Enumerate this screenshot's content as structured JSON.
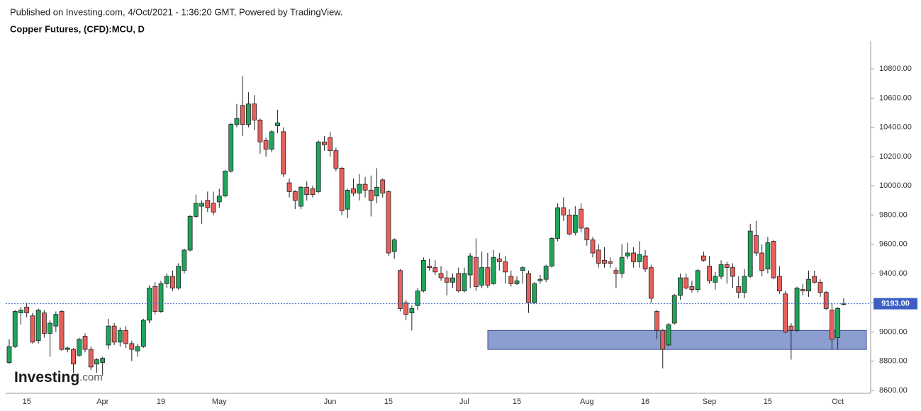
{
  "header": "Published on Investing.com, 4/Oct/2021 - 1:36:20 GMT, Powered by TradingView.",
  "logo": {
    "name": "Investing",
    "suffix": ".com"
  },
  "chart_data": {
    "type": "candlestick",
    "title": "Copper Futures, (CFD):MCU, D",
    "up_color": "#1fa55b",
    "down_color": "#e8605a",
    "outline_color": "#222222",
    "categories": [
      null,
      null,
      null,
      "15",
      null,
      null,
      null,
      null,
      null,
      null,
      null,
      null,
      null,
      null,
      null,
      null,
      "Apr",
      null,
      null,
      null,
      null,
      null,
      null,
      null,
      null,
      null,
      "19",
      null,
      null,
      null,
      null,
      null,
      null,
      null,
      null,
      null,
      "May",
      null,
      null,
      null,
      null,
      null,
      null,
      null,
      null,
      null,
      null,
      null,
      null,
      null,
      null,
      null,
      null,
      null,
      null,
      "Jun",
      null,
      null,
      null,
      null,
      null,
      null,
      null,
      null,
      null,
      "15",
      null,
      null,
      null,
      null,
      null,
      null,
      null,
      null,
      null,
      null,
      null,
      null,
      "Jul",
      null,
      null,
      null,
      null,
      null,
      null,
      null,
      null,
      "15",
      null,
      null,
      null,
      null,
      null,
      null,
      null,
      null,
      null,
      null,
      null,
      "Aug",
      null,
      null,
      null,
      null,
      null,
      null,
      null,
      null,
      null,
      "16",
      null,
      null,
      null,
      null,
      null,
      null,
      null,
      null,
      null,
      null,
      "Sep",
      null,
      null,
      null,
      null,
      null,
      null,
      null,
      null,
      null,
      "15",
      null,
      null,
      null,
      null,
      null,
      null,
      null,
      null,
      null,
      null,
      null,
      "Oct",
      null
    ],
    "open": [
      8790,
      8900,
      9130,
      9170,
      9110,
      8940,
      9130,
      8990,
      9040,
      9140,
      8880,
      8880,
      8840,
      8970,
      8880,
      8780,
      8790,
      8910,
      9040,
      8930,
      9010,
      8920,
      8870,
      8900,
      9080,
      9310,
      9140,
      9330,
      9380,
      9300,
      9420,
      9560,
      9790,
      9860,
      9900,
      9880,
      9890,
      9930,
      10100,
      10420,
      10550,
      10420,
      10560,
      10450,
      10310,
      10250,
      10410,
      10370,
      10020,
      9960,
      9860,
      9990,
      9980,
      9960,
      10300,
      10330,
      10240,
      10120,
      9840,
      9980,
      9950,
      10010,
      9970,
      9930,
      10040,
      9960,
      9550,
      9420,
      9200,
      9130,
      9180,
      9280,
      9450,
      9440,
      9400,
      9370,
      9340,
      9400,
      9280,
      9390,
      9510,
      9320,
      9440,
      9330,
      9500,
      9480,
      9380,
      9330,
      9420,
      9400,
      9200,
      9350,
      9360,
      9450,
      9640,
      9850,
      9800,
      9680,
      9840,
      9710,
      9630,
      9560,
      9490,
      9480,
      9420,
      9400,
      9520,
      9540,
      9480,
      9520,
      9440,
      9140,
      9010,
      8910,
      9060,
      9250,
      9370,
      9310,
      9290,
      9520,
      9450,
      9340,
      9380,
      9460,
      9440,
      9310,
      9270,
      9380,
      9660,
      9540,
      9430,
      9620,
      9380,
      9260,
      9040,
      9010,
      9290,
      9280,
      9380,
      9340,
      9270,
      9150,
      8960,
      9190
    ],
    "high": [
      8950,
      9150,
      9170,
      9200,
      9130,
      9160,
      9150,
      9080,
      9140,
      9150,
      8900,
      8890,
      8960,
      8990,
      8900,
      8820,
      8830,
      9090,
      9060,
      9030,
      9040,
      8940,
      8920,
      9090,
      9320,
      9340,
      9350,
      9400,
      9420,
      9470,
      9570,
      9800,
      9940,
      9900,
      9960,
      9960,
      9980,
      10110,
      10430,
      10560,
      10750,
      10640,
      10620,
      10460,
      10330,
      10380,
      10520,
      10400,
      10050,
      9970,
      10000,
      10030,
      10000,
      10310,
      10340,
      10370,
      10260,
      10130,
      9980,
      10050,
      10080,
      10060,
      10070,
      10120,
      10050,
      9970,
      9640,
      9430,
      9220,
      9180,
      9300,
      9510,
      9500,
      9490,
      9450,
      9420,
      9400,
      9440,
      9440,
      9540,
      9640,
      9550,
      9540,
      9560,
      9540,
      9520,
      9420,
      9380,
      9450,
      9420,
      9340,
      9390,
      9460,
      9650,
      9880,
      9920,
      9840,
      9860,
      9880,
      9720,
      9650,
      9600,
      9580,
      9510,
      9440,
      9600,
      9610,
      9580,
      9620,
      9560,
      9460,
      9150,
      9020,
      9060,
      9260,
      9400,
      9400,
      9350,
      9430,
      9550,
      9520,
      9410,
      9490,
      9480,
      9470,
      9380,
      9430,
      9740,
      9760,
      9600,
      9650,
      9630,
      9450,
      9280,
      9060,
      9310,
      9330,
      9420,
      9420,
      9360,
      9280,
      9200,
      9170,
      9230
    ],
    "low": [
      8780,
      8890,
      9050,
      9100,
      8920,
      8920,
      8960,
      8830,
      9000,
      8870,
      8860,
      8720,
      8830,
      8860,
      8740,
      8720,
      8700,
      8880,
      8910,
      8900,
      8890,
      8800,
      8830,
      8890,
      9060,
      9120,
      9130,
      9300,
      9280,
      9290,
      9400,
      9550,
      9780,
      9740,
      9820,
      9800,
      9850,
      9920,
      10090,
      10400,
      10340,
      10400,
      10380,
      10220,
      10200,
      10230,
      10360,
      10060,
      9920,
      9840,
      9840,
      9900,
      9920,
      9950,
      10240,
      10200,
      10100,
      9800,
      9780,
      9930,
      9900,
      9920,
      9790,
      9880,
      9920,
      9520,
      9500,
      9140,
      9080,
      9010,
      9150,
      9270,
      9420,
      9390,
      9350,
      9250,
      9300,
      9270,
      9270,
      9300,
      9280,
      9300,
      9300,
      9320,
      9420,
      9330,
      9310,
      9320,
      9330,
      9130,
      9190,
      9330,
      9340,
      9440,
      9620,
      9760,
      9660,
      9660,
      9680,
      9590,
      9510,
      9440,
      9440,
      9440,
      9300,
      9370,
      9500,
      9440,
      9440,
      9410,
      9200,
      8950,
      8750,
      8900,
      9050,
      9220,
      9290,
      9270,
      9270,
      9480,
      9330,
      9290,
      9360,
      9330,
      9300,
      9230,
      9230,
      9370,
      9520,
      9380,
      9400,
      9360,
      9260,
      8990,
      8810,
      9000,
      9250,
      9240,
      9330,
      9240,
      9150,
      8880,
      8880,
      9180
    ],
    "close": [
      8900,
      9140,
      9150,
      9130,
      8930,
      9150,
      8990,
      9060,
      9120,
      8880,
      8890,
      8780,
      8950,
      8880,
      8760,
      8810,
      8820,
      9040,
      8930,
      9010,
      8920,
      8880,
      8900,
      9080,
      9300,
      9140,
      9330,
      9380,
      9300,
      9450,
      9560,
      9790,
      9880,
      9880,
      9850,
      9820,
      9930,
      10100,
      10420,
      10460,
      10420,
      10560,
      10450,
      10300,
      10250,
      10370,
      10430,
      10080,
      9960,
      9900,
      9990,
      9940,
      9940,
      10300,
      10280,
      10240,
      10120,
      9830,
      9970,
      9950,
      10010,
      9970,
      9900,
      9990,
      9950,
      9540,
      9630,
      9160,
      9120,
      9160,
      9280,
      9490,
      9440,
      9410,
      9370,
      9340,
      9370,
      9280,
      9400,
      9520,
      9310,
      9440,
      9320,
      9510,
      9480,
      9410,
      9330,
      9350,
      9440,
      9200,
      9330,
      9360,
      9450,
      9640,
      9850,
      9800,
      9670,
      9800,
      9710,
      9630,
      9540,
      9470,
      9470,
      9470,
      9400,
      9510,
      9540,
      9480,
      9530,
      9430,
      9230,
      9010,
      8880,
      9050,
      9250,
      9370,
      9300,
      9290,
      9420,
      9490,
      9350,
      9380,
      9460,
      9440,
      9380,
      9270,
      9380,
      9690,
      9540,
      9420,
      9610,
      9370,
      9280,
      9000,
      9010,
      9300,
      9280,
      9360,
      9340,
      9270,
      9160,
      8950,
      9160,
      9193
    ],
    "ylim": [
      8580,
      10990
    ],
    "yticks": [
      {
        "value": 8600,
        "label": "8600.00"
      },
      {
        "value": 8800,
        "label": "8800.00"
      },
      {
        "value": 9000,
        "label": "9000.00"
      },
      {
        "value": 9200,
        "label": "9200.00"
      },
      {
        "value": 9400,
        "label": "9400.00"
      },
      {
        "value": 9600,
        "label": "9600.00"
      },
      {
        "value": 9800,
        "label": "9800.00"
      },
      {
        "value": 10000,
        "label": "10000.00"
      },
      {
        "value": 10200,
        "label": "10200.00"
      },
      {
        "value": 10400,
        "label": "10400.00"
      },
      {
        "value": 10600,
        "label": "10600.00"
      },
      {
        "value": 10800,
        "label": "10800.00"
      }
    ],
    "last_price": {
      "value": 9193,
      "label": "9193.00"
    },
    "last_price_color": "#3d5fc4",
    "zone": [
      8880,
      9010
    ],
    "zone_color": "#8c9dd0"
  }
}
